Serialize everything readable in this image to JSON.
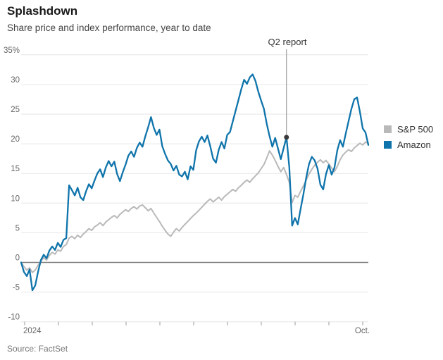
{
  "header": {
    "title": "Splashdown",
    "subtitle": "Share price and index performance, year to date"
  },
  "footer": {
    "source": "Source: FactSet"
  },
  "chart_data": {
    "type": "line",
    "title": "Splashdown",
    "subtitle": "Share price and index performance, year to date",
    "unit": "percent YTD change",
    "ylim": [
      -10,
      35
    ],
    "y_ticks": [
      35,
      30,
      25,
      20,
      15,
      10,
      5,
      0,
      -5,
      -10
    ],
    "y_tick_labels": [
      "35%",
      "30",
      "25",
      "20",
      "15",
      "10",
      "5",
      "0",
      "-5",
      "-10"
    ],
    "grid": "horizontal only, zero line emphasized",
    "legend_position": "right",
    "x_axis": {
      "start_label": "2024",
      "end_label": "Oct.",
      "tick_count": 11
    },
    "series": [
      {
        "name": "S&P 500",
        "color": "#b9b9b9",
        "values": [
          0,
          -0.7,
          -1.3,
          -0.9,
          -1.7,
          -1.3,
          -0.5,
          0.2,
          0.8,
          0.4,
          1.2,
          1.7,
          1.4,
          2.1,
          1.9,
          2.7,
          3,
          4.1,
          4.4,
          4,
          4.6,
          4.2,
          4.8,
          5.2,
          5.7,
          5.4,
          6,
          6.3,
          6.7,
          6.2,
          6.8,
          7.2,
          7.6,
          7.9,
          7.5,
          8.1,
          8.5,
          8.9,
          8.6,
          9.1,
          9.4,
          9,
          9.5,
          9.7,
          9.2,
          8.7,
          9.1,
          8.3,
          7.6,
          6.9,
          6.1,
          5.4,
          4.8,
          4.4,
          5.1,
          5.7,
          5.3,
          5.9,
          6.4,
          6.9,
          7.4,
          7.9,
          8.3,
          8.8,
          9.3,
          9.8,
          10.3,
          10.7,
          10.2,
          10.6,
          11,
          10.5,
          11.1,
          11.5,
          11.9,
          12.3,
          12,
          12.6,
          13,
          13.5,
          13.9,
          13.5,
          14.1,
          14.6,
          15.1,
          15.8,
          16.5,
          17.6,
          18.8,
          18.1,
          17.2,
          16.2,
          15.3,
          16,
          14.8,
          13.5,
          10.1,
          11.3,
          11,
          12,
          12.9,
          13.9,
          14.9,
          15.7,
          16.4,
          16.9,
          17.3,
          16.8,
          17.2,
          16.6,
          15.9,
          15.3,
          16.2,
          17.3,
          18.1,
          18.6,
          19,
          18.7,
          19.3,
          19.7,
          20.1,
          19.8,
          20.3,
          20.1
        ]
      },
      {
        "name": "Amazon",
        "color": "#0f74ab",
        "values": [
          0,
          -1.6,
          -2.3,
          -1.2,
          -4.7,
          -3.9,
          -1.6,
          0.4,
          1.3,
          0.7,
          2,
          2.7,
          2.1,
          3.3,
          2.6,
          3.8,
          4.1,
          13,
          12.2,
          11.3,
          12.6,
          11,
          10.5,
          12,
          13.2,
          12.5,
          13.8,
          15,
          15.7,
          14.4,
          16,
          17.1,
          16.2,
          17,
          14.9,
          13.7,
          15.2,
          16.5,
          18,
          18.7,
          17.8,
          19.3,
          20.2,
          19.5,
          21.3,
          22.8,
          24.5,
          22.7,
          21.5,
          22.4,
          19.6,
          18.3,
          17.2,
          16.6,
          15.5,
          16.3,
          14.8,
          14.5,
          15.3,
          14,
          16.2,
          15.6,
          18.9,
          20.4,
          21.2,
          20.3,
          21.4,
          19.6,
          17.5,
          16.8,
          19,
          20.3,
          19.2,
          21.5,
          22,
          23.8,
          25.6,
          27.4,
          29.2,
          30.8,
          30.1,
          31.2,
          31.7,
          30.6,
          28.8,
          27.3,
          25.9,
          23.4,
          21.3,
          19.5,
          21,
          19.2,
          17.4,
          19.3,
          21.1,
          16,
          6.2,
          7.5,
          6.4,
          9,
          11.5,
          14.3,
          16.6,
          17.8,
          17.2,
          15.8,
          13.1,
          12.3,
          14.9,
          16.4,
          14.8,
          16,
          18.9,
          20.6,
          19.5,
          21.7,
          23.8,
          25.9,
          27.5,
          27.8,
          25.4,
          22.6,
          21.9,
          19.8
        ]
      }
    ],
    "annotation": {
      "label": "Q2 report",
      "series": "Amazon",
      "index": 94,
      "value": 21.1,
      "color": "#3a3a3a"
    }
  }
}
